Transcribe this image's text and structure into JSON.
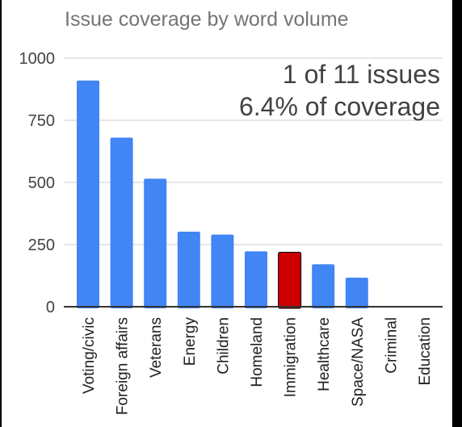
{
  "chart_data": {
    "type": "bar",
    "title": "Issue coverage by word volume",
    "categories": [
      "Voting/civic",
      "Foreign affairs",
      "Veterans",
      "Energy",
      "Children",
      "Homeland",
      "Immigration",
      "Healthcare",
      "Space/NASA",
      "Criminal",
      "Education"
    ],
    "values": [
      910,
      680,
      515,
      302,
      290,
      223,
      219,
      171,
      117,
      0,
      0
    ],
    "highlight_index": 6,
    "ylim": [
      0,
      1000
    ],
    "yticks": [
      0,
      250,
      500,
      750,
      1000
    ],
    "ytick_labels": [
      "0",
      "250",
      "500",
      "750",
      "1000"
    ],
    "xlabel": "",
    "ylabel": "",
    "grid": true,
    "annotations": [
      "1 of 11 issues",
      "6.4% of coverage"
    ]
  },
  "colors": {
    "bar": "#4285f4",
    "highlight": "#cc0000",
    "grid": "#cccccc",
    "axis": "#333333",
    "tick_text": "#424242",
    "label_text": "#212121"
  }
}
